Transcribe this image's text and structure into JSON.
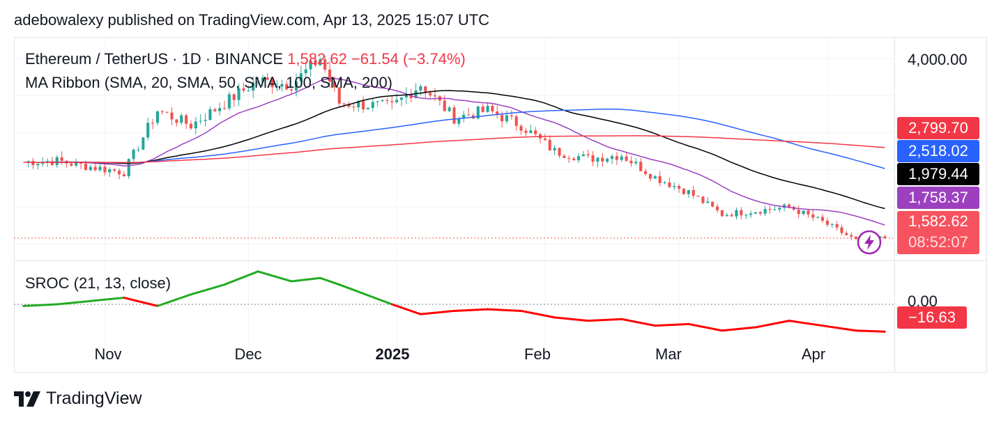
{
  "header": {
    "text": "adebowalexy published on TradingView.com, Apr 13, 2025 15:07 UTC"
  },
  "legend": {
    "symbol": "Ethereum / TetherUS · 1D · BINANCE",
    "price": "1,582.62",
    "change": "−61.54 (−3.74%)",
    "ma_ribbon": "MA Ribbon (SMA, 20, SMA, 50, SMA, 100, SMA, 200)",
    "sroc": "SROC (21, 13, close)"
  },
  "price_axis": {
    "top_label": "4,000.00"
  },
  "price_tags": [
    {
      "label": "2,799.70",
      "color": "#f23645"
    },
    {
      "label": "2,518.02",
      "color": "#2962ff"
    },
    {
      "label": "1,979.44",
      "color": "#000000"
    },
    {
      "label": "1,758.37",
      "color": "#9c40c0"
    },
    {
      "label": "1,582.62",
      "color": "#f7525f",
      "countdown": "08:52:07"
    }
  ],
  "sroc_axis": {
    "zero_label": "0.00",
    "value_label": "−16.63",
    "value_color": "#f23645"
  },
  "x_axis": {
    "labels": [
      "Nov",
      "Dec",
      "2025",
      "Feb",
      "Mar",
      "Apr"
    ]
  },
  "footer": {
    "brand": "TradingView"
  },
  "colors": {
    "up": "#26a69a",
    "down": "#ef5350",
    "sma20": "#9c40c0",
    "sma50": "#000000",
    "sma100": "#2962ff",
    "sma200": "#f23645",
    "sroc_up": "#22ab22",
    "sroc_down": "#ff0000"
  },
  "chart_data": {
    "type": "line",
    "title": "Ethereum / TetherUS · 1D · BINANCE",
    "x_ticks": [
      "Nov",
      "Dec",
      "2025",
      "Feb",
      "Mar",
      "Apr"
    ],
    "y_ticks": [
      "4,000.00"
    ],
    "last_price": 1582.62,
    "close_series": [
      {
        "date": "2024-10-15",
        "close": 2610
      },
      {
        "date": "2024-10-22",
        "close": 2620
      },
      {
        "date": "2024-10-29",
        "close": 2540
      },
      {
        "date": "2024-11-05",
        "close": 2470
      },
      {
        "date": "2024-11-12",
        "close": 3300
      },
      {
        "date": "2024-11-19",
        "close": 3100
      },
      {
        "date": "2024-11-26",
        "close": 3400
      },
      {
        "date": "2024-12-03",
        "close": 3700
      },
      {
        "date": "2024-12-10",
        "close": 3650
      },
      {
        "date": "2024-12-16",
        "close": 4000
      },
      {
        "date": "2024-12-20",
        "close": 3400
      },
      {
        "date": "2024-12-31",
        "close": 3350
      },
      {
        "date": "2025-01-06",
        "close": 3650
      },
      {
        "date": "2025-01-13",
        "close": 3200
      },
      {
        "date": "2025-01-20",
        "close": 3300
      },
      {
        "date": "2025-01-27",
        "close": 3100
      },
      {
        "date": "2025-02-03",
        "close": 2750
      },
      {
        "date": "2025-02-10",
        "close": 2650
      },
      {
        "date": "2025-02-17",
        "close": 2700
      },
      {
        "date": "2025-02-24",
        "close": 2400
      },
      {
        "date": "2025-03-03",
        "close": 2200
      },
      {
        "date": "2025-03-10",
        "close": 1900
      },
      {
        "date": "2025-03-17",
        "close": 1950
      },
      {
        "date": "2025-03-24",
        "close": 2000
      },
      {
        "date": "2025-03-31",
        "close": 1800
      },
      {
        "date": "2025-04-07",
        "close": 1550
      },
      {
        "date": "2025-04-13",
        "close": 1582.62
      }
    ],
    "moving_averages": [
      {
        "name": "SMA 20",
        "last": 1758.37
      },
      {
        "name": "SMA 50",
        "last": 1979.44
      },
      {
        "name": "SMA 100",
        "last": 2518.02
      },
      {
        "name": "SMA 200",
        "last": 2799.7
      }
    ],
    "sroc": {
      "last": -16.63,
      "values": [
        -1,
        0,
        2,
        4,
        -1,
        6,
        12,
        20,
        14,
        16,
        12,
        0,
        -6,
        -4,
        -3,
        -4,
        -8,
        -10,
        -9,
        -13,
        -12,
        -16,
        -14,
        -10,
        -13,
        -16,
        -16.63
      ]
    }
  }
}
